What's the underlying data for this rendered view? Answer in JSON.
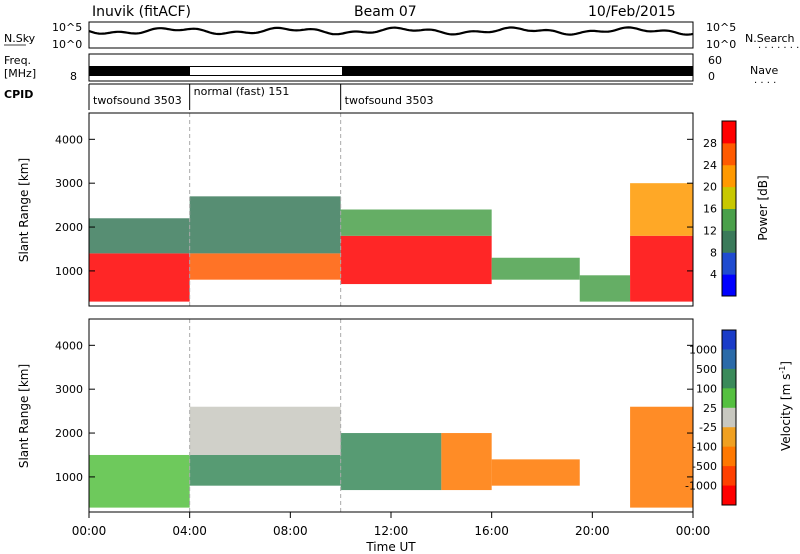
{
  "header": {
    "station": "Inuvik (fitACF)",
    "beam": "Beam 07",
    "date": "10/Feb/2015"
  },
  "noise_panel": {
    "left_label": "N.Sky",
    "right_label": "N.Search",
    "ticks": [
      "10^5",
      "10^0"
    ]
  },
  "freq_panel": {
    "label_line1": "Freq.",
    "label_line2": "[MHz]",
    "left_tick": "8",
    "right_label": "Nave",
    "right_ticks": [
      "60",
      "0"
    ]
  },
  "cpid": {
    "label": "CPID",
    "segments": [
      {
        "name": "twofsound 3503",
        "start_hour": 0,
        "end_hour": 4
      },
      {
        "name": "normal (fast) 151",
        "start_hour": 4,
        "end_hour": 10
      },
      {
        "name": "twofsound 3503",
        "start_hour": 10,
        "end_hour": 24
      }
    ]
  },
  "colors": {
    "power_scale": [
      "#0000ff",
      "#1f4bd0",
      "#3a7a5a",
      "#4aa04a",
      "#c8c800",
      "#ff9900",
      "#ff5a00",
      "#ff0000"
    ],
    "velocity_scale": [
      "#1a3cc8",
      "#2a6aa8",
      "#3a8a5a",
      "#55c040",
      "#c8c8c0",
      "#f0a020",
      "#ff7800",
      "#ff4000",
      "#ff0000"
    ]
  },
  "chart_data": [
    {
      "type": "heatmap",
      "panel": "power",
      "ylabel": "Slant Range [km]",
      "yticks": [
        1000,
        2000,
        3000,
        4000
      ],
      "ylim": [
        200,
        4600
      ],
      "xlim_hours": [
        0,
        24
      ],
      "colorbar_label": "Power [dB]",
      "colorbar_ticks": [
        "4",
        "8",
        "12",
        "16",
        "20",
        "24",
        "28"
      ],
      "colorbar_range": [
        0,
        32
      ],
      "regions": [
        {
          "t0": 0,
          "t1": 4,
          "r0": 300,
          "r1": 1400,
          "level": 28
        },
        {
          "t0": 0,
          "t1": 4,
          "r0": 1400,
          "r1": 2200,
          "level": 10
        },
        {
          "t0": 4,
          "t1": 10,
          "r0": 800,
          "r1": 1400,
          "level": 24
        },
        {
          "t0": 4,
          "t1": 10,
          "r0": 1400,
          "r1": 2700,
          "level": 8
        },
        {
          "t0": 10,
          "t1": 16,
          "r0": 700,
          "r1": 1800,
          "level": 28
        },
        {
          "t0": 10,
          "t1": 16,
          "r0": 1800,
          "r1": 2400,
          "level": 12
        },
        {
          "t0": 16,
          "t1": 19.5,
          "r0": 800,
          "r1": 1300,
          "level": 14
        },
        {
          "t0": 19.5,
          "t1": 21.5,
          "r0": 300,
          "r1": 900,
          "level": 14
        },
        {
          "t0": 21.5,
          "t1": 24,
          "r0": 300,
          "r1": 1800,
          "level": 28
        },
        {
          "t0": 21.5,
          "t1": 24,
          "r0": 1800,
          "r1": 3000,
          "level": 20
        }
      ]
    },
    {
      "type": "heatmap",
      "panel": "velocity",
      "ylabel": "Slant Range [km]",
      "xlabel": "Time UT",
      "yticks": [
        1000,
        2000,
        3000,
        4000
      ],
      "ylim": [
        200,
        4600
      ],
      "xlim_hours": [
        0,
        24
      ],
      "xticks": [
        "00:00",
        "04:00",
        "08:00",
        "12:00",
        "16:00",
        "20:00",
        "00:00"
      ],
      "colorbar_label": "Velocity [m s^-1]",
      "colorbar_ticks": [
        "1000",
        "500",
        "100",
        "25",
        "-25",
        "-100",
        "-500",
        "-1000"
      ],
      "regions": [
        {
          "t0": 0,
          "t1": 4,
          "r0": 300,
          "r1": 1500,
          "velocity": 50
        },
        {
          "t0": 4,
          "t1": 10,
          "r0": 800,
          "r1": 1500,
          "velocity": 150
        },
        {
          "t0": 4,
          "t1": 10,
          "r0": 1500,
          "r1": 2600,
          "velocity": 0
        },
        {
          "t0": 10,
          "t1": 14,
          "r0": 700,
          "r1": 2000,
          "velocity": 300
        },
        {
          "t0": 14,
          "t1": 16,
          "r0": 700,
          "r1": 2000,
          "velocity": -150
        },
        {
          "t0": 16,
          "t1": 19.5,
          "r0": 800,
          "r1": 1400,
          "velocity": -150
        },
        {
          "t0": 21.5,
          "t1": 24,
          "r0": 300,
          "r1": 2600,
          "velocity": -200
        }
      ]
    }
  ]
}
